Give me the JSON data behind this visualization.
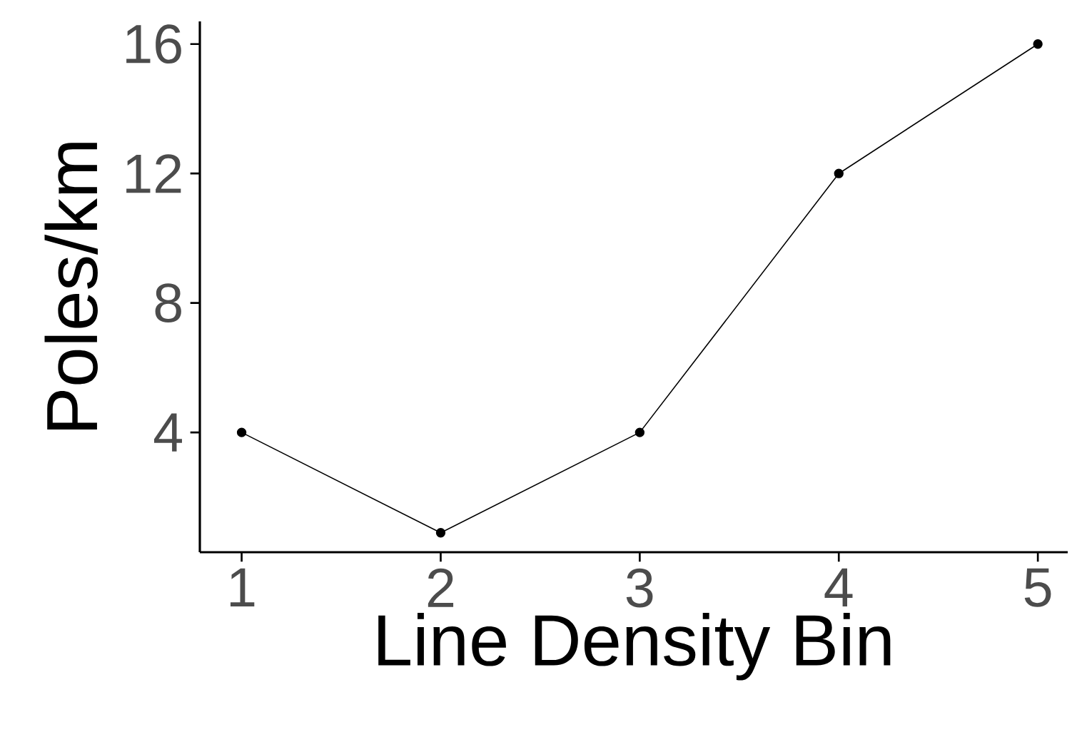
{
  "chart_data": {
    "type": "line",
    "xlabel": "Line Density Bin",
    "ylabel": "Poles/km",
    "x": [
      1,
      2,
      3,
      4,
      5
    ],
    "series": [
      {
        "color": "#000000",
        "values": [
          4,
          0.9,
          4,
          12,
          16
        ]
      }
    ],
    "xlim": [
      0.79,
      5.15
    ],
    "ylim": [
      0.3,
      16.7
    ],
    "xticks": [
      1,
      2,
      3,
      4,
      5
    ],
    "yticks": [
      4,
      8,
      12,
      16
    ],
    "marker": "circle",
    "grid": false
  }
}
